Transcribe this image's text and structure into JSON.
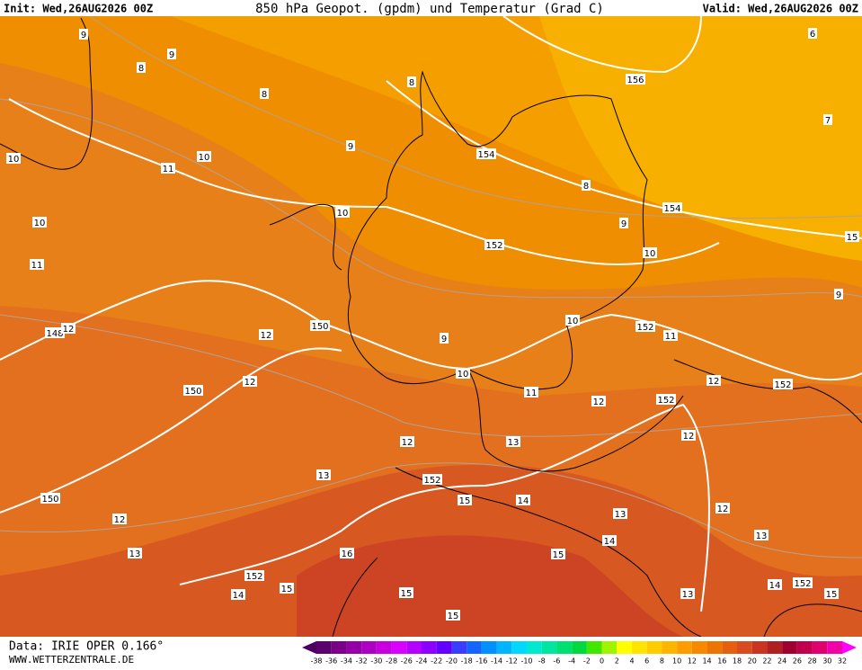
{
  "header": {
    "init": "Init: Wed,26AUG2026 00Z",
    "title": "850 hPa Geopot. (gpdm) und Temperatur (Grad C)",
    "valid": "Valid: Wed,26AUG2026 00Z"
  },
  "map_labels": [
    "6",
    "156",
    "7",
    "154",
    "8",
    "9",
    "154",
    "15",
    "152",
    "10",
    "9",
    "150",
    "12",
    "9",
    "10",
    "152",
    "11",
    "10",
    "12",
    "150",
    "11",
    "12",
    "152",
    "12",
    "152",
    "12",
    "13",
    "12",
    "13",
    "152",
    "15",
    "14",
    "150",
    "12",
    "13",
    "12",
    "13",
    "16",
    "15",
    "14",
    "13",
    "152",
    "15",
    "14",
    "15",
    "13",
    "14",
    "152",
    "15",
    "15",
    "148",
    "9",
    "8",
    "9",
    "8",
    "8",
    "9",
    "11",
    "10",
    "10",
    "10",
    "10",
    "11",
    "12"
  ],
  "footer": {
    "data": "Data: IRIE OPER 0.166°",
    "site": "WWW.WETTERZENTRALE.DE"
  },
  "colorbar": {
    "labels": [
      -38,
      -36,
      -34,
      -32,
      -30,
      -28,
      -26,
      -24,
      -22,
      -20,
      -18,
      -16,
      -14,
      -12,
      -10,
      -8,
      -6,
      -4,
      -2,
      0,
      2,
      4,
      6,
      8,
      10,
      12,
      14,
      16,
      18,
      20,
      22,
      24,
      26,
      28,
      30,
      32
    ],
    "colors": [
      "#4a0060",
      "#5c0070",
      "#7a008a",
      "#9400a6",
      "#ae00c4",
      "#c800e0",
      "#d800ff",
      "#b400ff",
      "#8c00ff",
      "#6400ff",
      "#3c3cff",
      "#1464ff",
      "#0090ff",
      "#00b4ff",
      "#00d8ff",
      "#00e8d0",
      "#00e6a0",
      "#00e070",
      "#00d840",
      "#40e800",
      "#a0f400",
      "#ffff00",
      "#ffe400",
      "#ffcc00",
      "#ffb400",
      "#ff9c00",
      "#f88800",
      "#ee7400",
      "#e46010",
      "#d84c20",
      "#c83420",
      "#b02020",
      "#a00030",
      "#c0004a",
      "#e00070",
      "#f000a8",
      "#ff00ff"
    ]
  }
}
